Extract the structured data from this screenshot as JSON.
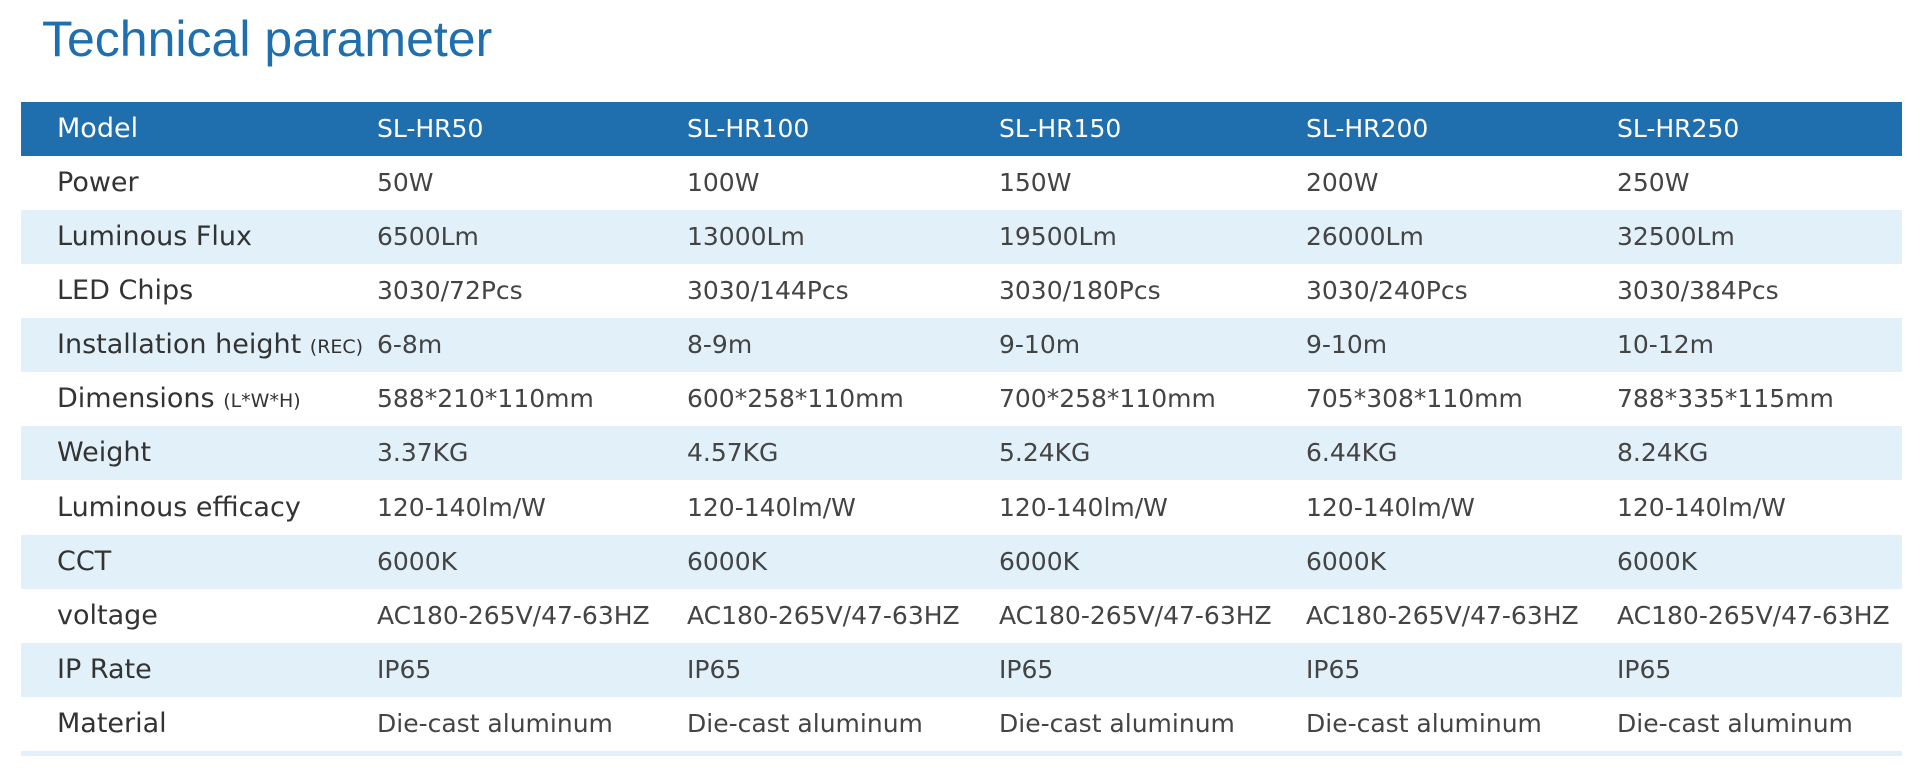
{
  "title": "Technical parameter",
  "table": {
    "header": {
      "label": "Model",
      "values": [
        "SL-HR50",
        "SL-HR100",
        "SL-HR150",
        "SL-HR200",
        "SL-HR250"
      ]
    },
    "rows": [
      {
        "label": "Power",
        "values": [
          "50W",
          "100W",
          "150W",
          "200W",
          "250W"
        ]
      },
      {
        "label": "Luminous Flux",
        "values": [
          "6500Lm",
          "13000Lm",
          "19500Lm",
          "26000Lm",
          "32500Lm"
        ]
      },
      {
        "label": "LED Chips",
        "values": [
          "3030/72Pcs",
          "3030/144Pcs",
          "3030/180Pcs",
          "3030/240Pcs",
          "3030/384Pcs"
        ]
      },
      {
        "label": "Installation height",
        "note": "(REC)",
        "values": [
          "6-8m",
          "8-9m",
          "9-10m",
          "9-10m",
          "10-12m"
        ]
      },
      {
        "label": "Dimensions",
        "note": "(L*W*H)",
        "values": [
          "588*210*110mm",
          "600*258*110mm",
          "700*258*110mm",
          "705*308*110mm",
          "788*335*115mm"
        ]
      },
      {
        "label": "Weight",
        "values": [
          "3.37KG",
          "4.57KG",
          "5.24KG",
          "6.44KG",
          "8.24KG"
        ]
      },
      {
        "label": "Luminous efficacy",
        "values": [
          "120-140lm/W",
          "120-140lm/W",
          "120-140lm/W",
          "120-140lm/W",
          "120-140lm/W"
        ]
      },
      {
        "label": "CCT",
        "values": [
          "6000K",
          "6000K",
          "6000K",
          "6000K",
          "6000K"
        ]
      },
      {
        "label": "voltage",
        "values": [
          "AC180-265V/47-63HZ",
          "AC180-265V/47-63HZ",
          "AC180-265V/47-63HZ",
          "AC180-265V/47-63HZ",
          "AC180-265V/47-63HZ"
        ]
      },
      {
        "label": "IP Rate",
        "values": [
          "IP65",
          "IP65",
          "IP65",
          "IP65",
          "IP65"
        ]
      },
      {
        "label": "Material",
        "values": [
          "Die-cast aluminum",
          "Die-cast aluminum",
          "Die-cast aluminum",
          "Die-cast aluminum",
          "Die-cast aluminum"
        ]
      }
    ]
  }
}
